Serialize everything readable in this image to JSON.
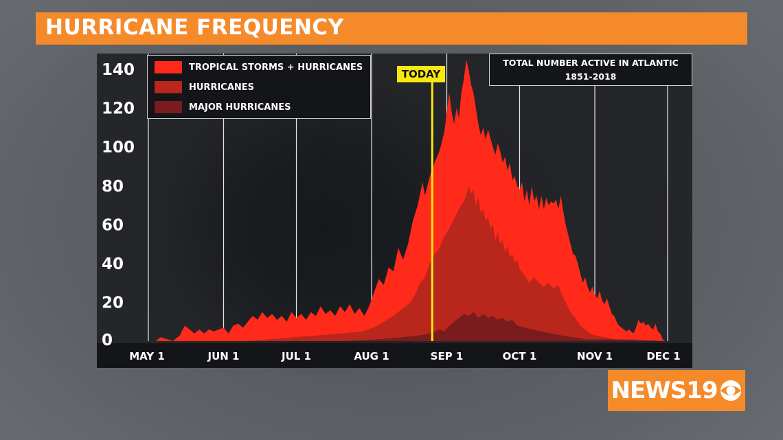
{
  "header": {
    "title": "HURRICANE FREQUENCY"
  },
  "info_box": {
    "line1": "TOTAL NUMBER ACTIVE IN ATLANTIC",
    "line2": "1851-2018"
  },
  "today": {
    "label": "TODAY",
    "day": 117,
    "color": "#f7e80f"
  },
  "logo": {
    "text": "NEWS19",
    "icon": "cbs-eye-icon"
  },
  "colors": {
    "storms": "#ff2a1a",
    "hurricanes": "#b8261c",
    "major": "#7a1c1e",
    "title_bar": "#f58a2a"
  },
  "chart_data": {
    "type": "area",
    "title": "HURRICANE FREQUENCY",
    "subtitle": "TOTAL NUMBER ACTIVE IN ATLANTIC 1851-2018",
    "xlabel": "",
    "ylabel": "",
    "x_ticks": [
      {
        "label": "MAY 1",
        "day": 0
      },
      {
        "label": "JUN 1",
        "day": 31
      },
      {
        "label": "JUL 1",
        "day": 61
      },
      {
        "label": "AUG 1",
        "day": 92
      },
      {
        "label": "SEP 1",
        "day": 123
      },
      {
        "label": "OCT 1",
        "day": 153
      },
      {
        "label": "NOV 1",
        "day": 184
      },
      {
        "label": "DEC 1",
        "day": 214
      }
    ],
    "y_ticks": [
      0,
      20,
      40,
      60,
      80,
      100,
      120,
      140
    ],
    "ylim": [
      0,
      145
    ],
    "xlim": [
      0,
      214
    ],
    "grid": "vertical",
    "legend_position": "top-left",
    "series": [
      {
        "name": "TROPICAL STORMS + HURRICANES",
        "points": [
          [
            3,
            0
          ],
          [
            5,
            2
          ],
          [
            8,
            1
          ],
          [
            10,
            0
          ],
          [
            13,
            3
          ],
          [
            15,
            8
          ],
          [
            17,
            6
          ],
          [
            19,
            4
          ],
          [
            21,
            6
          ],
          [
            23,
            4
          ],
          [
            25,
            6
          ],
          [
            27,
            5
          ],
          [
            29,
            6
          ],
          [
            31,
            7
          ],
          [
            33,
            4
          ],
          [
            35,
            8
          ],
          [
            37,
            9
          ],
          [
            39,
            7
          ],
          [
            41,
            10
          ],
          [
            43,
            13
          ],
          [
            45,
            11
          ],
          [
            47,
            15
          ],
          [
            49,
            12
          ],
          [
            51,
            14
          ],
          [
            53,
            11
          ],
          [
            55,
            13
          ],
          [
            57,
            10
          ],
          [
            59,
            15
          ],
          [
            61,
            12
          ],
          [
            63,
            14
          ],
          [
            65,
            11
          ],
          [
            67,
            15
          ],
          [
            69,
            13
          ],
          [
            71,
            18
          ],
          [
            73,
            14
          ],
          [
            75,
            16
          ],
          [
            77,
            13
          ],
          [
            79,
            18
          ],
          [
            81,
            15
          ],
          [
            83,
            19
          ],
          [
            85,
            14
          ],
          [
            87,
            17
          ],
          [
            89,
            13
          ],
          [
            91,
            18
          ],
          [
            93,
            25
          ],
          [
            95,
            32
          ],
          [
            97,
            29
          ],
          [
            99,
            38
          ],
          [
            101,
            36
          ],
          [
            103,
            48
          ],
          [
            105,
            42
          ],
          [
            107,
            50
          ],
          [
            109,
            62
          ],
          [
            111,
            70
          ],
          [
            113,
            82
          ],
          [
            114,
            75
          ],
          [
            116,
            85
          ],
          [
            118,
            92
          ],
          [
            120,
            98
          ],
          [
            122,
            108
          ],
          [
            123,
            118
          ],
          [
            124,
            128
          ],
          [
            125,
            118
          ],
          [
            126,
            112
          ],
          [
            127,
            120
          ],
          [
            128,
            115
          ],
          [
            129,
            128
          ],
          [
            130,
            135
          ],
          [
            131,
            145
          ],
          [
            132,
            140
          ],
          [
            133,
            132
          ],
          [
            134,
            128
          ],
          [
            135,
            120
          ],
          [
            136,
            112
          ],
          [
            137,
            106
          ],
          [
            138,
            110
          ],
          [
            139,
            104
          ],
          [
            140,
            109
          ],
          [
            142,
            100
          ],
          [
            143,
            96
          ],
          [
            144,
            102
          ],
          [
            145,
            98
          ],
          [
            146,
            92
          ],
          [
            147,
            95
          ],
          [
            148,
            88
          ],
          [
            149,
            92
          ],
          [
            150,
            83
          ],
          [
            151,
            85
          ],
          [
            152,
            80
          ],
          [
            153,
            78
          ],
          [
            154,
            82
          ],
          [
            155,
            72
          ],
          [
            156,
            78
          ],
          [
            157,
            70
          ],
          [
            158,
            80
          ],
          [
            159,
            72
          ],
          [
            160,
            75
          ],
          [
            161,
            68
          ],
          [
            162,
            75
          ],
          [
            163,
            68
          ],
          [
            164,
            74
          ],
          [
            165,
            70
          ],
          [
            166,
            72
          ],
          [
            167,
            71
          ],
          [
            168,
            73
          ],
          [
            169,
            68
          ],
          [
            170,
            75
          ],
          [
            171,
            67
          ],
          [
            172,
            60
          ],
          [
            173,
            55
          ],
          [
            174,
            50
          ],
          [
            175,
            45
          ],
          [
            176,
            44
          ],
          [
            177,
            40
          ],
          [
            178,
            35
          ],
          [
            179,
            30
          ],
          [
            180,
            33
          ],
          [
            181,
            28
          ],
          [
            182,
            25
          ],
          [
            183,
            28
          ],
          [
            184,
            24
          ],
          [
            185,
            22
          ],
          [
            186,
            26
          ],
          [
            187,
            21
          ],
          [
            188,
            19
          ],
          [
            189,
            22
          ],
          [
            190,
            18
          ],
          [
            191,
            14
          ],
          [
            192,
            13
          ],
          [
            193,
            10
          ],
          [
            194,
            8
          ],
          [
            195,
            7
          ],
          [
            196,
            6
          ],
          [
            197,
            5
          ],
          [
            198,
            6
          ],
          [
            199,
            5
          ],
          [
            200,
            4
          ],
          [
            201,
            7
          ],
          [
            202,
            11
          ],
          [
            203,
            9
          ],
          [
            204,
            10
          ],
          [
            205,
            8
          ],
          [
            206,
            9
          ],
          [
            207,
            7
          ],
          [
            208,
            6
          ],
          [
            209,
            9
          ],
          [
            210,
            5
          ],
          [
            211,
            4
          ],
          [
            212,
            1
          ],
          [
            213,
            0
          ]
        ]
      },
      {
        "name": "HURRICANES",
        "points": [
          [
            3,
            0
          ],
          [
            40,
            0
          ],
          [
            50,
            1
          ],
          [
            60,
            2
          ],
          [
            70,
            3
          ],
          [
            80,
            4
          ],
          [
            88,
            5
          ],
          [
            93,
            7
          ],
          [
            97,
            10
          ],
          [
            101,
            13
          ],
          [
            105,
            17
          ],
          [
            108,
            20
          ],
          [
            110,
            24
          ],
          [
            112,
            30
          ],
          [
            114,
            33
          ],
          [
            116,
            40
          ],
          [
            118,
            45
          ],
          [
            120,
            48
          ],
          [
            122,
            54
          ],
          [
            124,
            58
          ],
          [
            126,
            63
          ],
          [
            128,
            68
          ],
          [
            130,
            72
          ],
          [
            131,
            75
          ],
          [
            132,
            80
          ],
          [
            133,
            76
          ],
          [
            134,
            78
          ],
          [
            135,
            70
          ],
          [
            136,
            74
          ],
          [
            137,
            66
          ],
          [
            138,
            68
          ],
          [
            139,
            62
          ],
          [
            140,
            64
          ],
          [
            141,
            58
          ],
          [
            142,
            60
          ],
          [
            143,
            52
          ],
          [
            144,
            56
          ],
          [
            145,
            50
          ],
          [
            146,
            52
          ],
          [
            147,
            46
          ],
          [
            148,
            49
          ],
          [
            149,
            43
          ],
          [
            150,
            45
          ],
          [
            151,
            40
          ],
          [
            152,
            42
          ],
          [
            153,
            37
          ],
          [
            155,
            34
          ],
          [
            157,
            30
          ],
          [
            159,
            33
          ],
          [
            161,
            30
          ],
          [
            163,
            28
          ],
          [
            165,
            30
          ],
          [
            167,
            27
          ],
          [
            169,
            29
          ],
          [
            170,
            25
          ],
          [
            172,
            20
          ],
          [
            174,
            15
          ],
          [
            176,
            12
          ],
          [
            178,
            8
          ],
          [
            180,
            6
          ],
          [
            182,
            4
          ],
          [
            184,
            3
          ],
          [
            188,
            2
          ],
          [
            192,
            1
          ],
          [
            200,
            1
          ],
          [
            213,
            0
          ]
        ]
      },
      {
        "name": "MAJOR HURRICANES",
        "points": [
          [
            3,
            0
          ],
          [
            80,
            0
          ],
          [
            95,
            1
          ],
          [
            105,
            2
          ],
          [
            112,
            3
          ],
          [
            116,
            4
          ],
          [
            118,
            5
          ],
          [
            120,
            6
          ],
          [
            122,
            5
          ],
          [
            124,
            8
          ],
          [
            126,
            10
          ],
          [
            128,
            12
          ],
          [
            130,
            14
          ],
          [
            132,
            13
          ],
          [
            134,
            15
          ],
          [
            136,
            12
          ],
          [
            138,
            14
          ],
          [
            140,
            12
          ],
          [
            142,
            13
          ],
          [
            144,
            11
          ],
          [
            146,
            12
          ],
          [
            148,
            10
          ],
          [
            150,
            11
          ],
          [
            152,
            8
          ],
          [
            155,
            7
          ],
          [
            158,
            6
          ],
          [
            162,
            5
          ],
          [
            166,
            4
          ],
          [
            170,
            3
          ],
          [
            175,
            2
          ],
          [
            180,
            1
          ],
          [
            190,
            1
          ],
          [
            213,
            0
          ]
        ]
      }
    ]
  }
}
